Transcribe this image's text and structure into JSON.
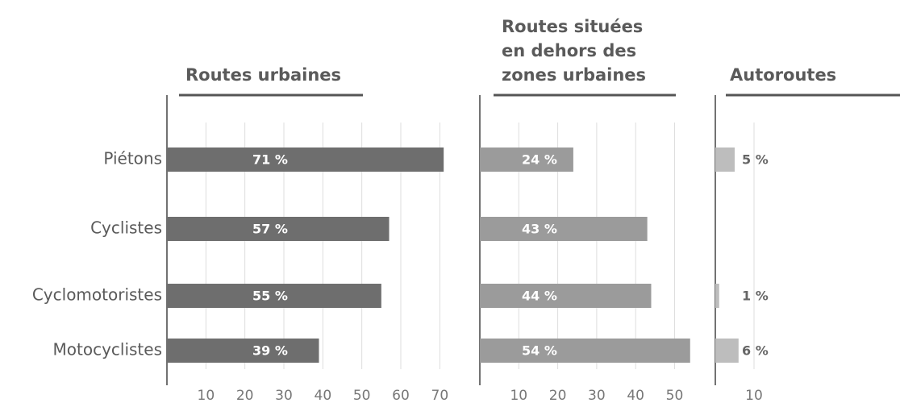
{
  "chart_data": [
    {
      "type": "bar",
      "orientation": "horizontal",
      "title": [
        "Routes urbaines"
      ],
      "categories": [
        "Piétons",
        "Cyclistes",
        "Cyclomotoristes",
        "Motocyclistes"
      ],
      "values": [
        71,
        57,
        55,
        39
      ],
      "value_labels": [
        "71 %",
        "57 %",
        "55 %",
        "39 %"
      ],
      "color": "#6e6e6e",
      "xlim": [
        0,
        75
      ],
      "xticks": [
        10,
        20,
        30,
        40,
        50,
        60,
        70
      ],
      "grid": true
    },
    {
      "type": "bar",
      "orientation": "horizontal",
      "title": [
        "Routes situées",
        "en dehors des",
        "zones urbaines"
      ],
      "values": [
        24,
        43,
        44,
        54
      ],
      "value_labels": [
        "24 %",
        "43 %",
        "44 %",
        "54 %"
      ],
      "color": "#9b9b9b",
      "xlim": [
        0,
        55
      ],
      "xticks": [
        10,
        20,
        30,
        40,
        50
      ],
      "grid": true
    },
    {
      "type": "bar",
      "orientation": "horizontal",
      "title": [
        "Autoroutes"
      ],
      "values": [
        5,
        null,
        1,
        6
      ],
      "value_labels": [
        "5 %",
        null,
        "1 %",
        "6 %"
      ],
      "color": "#bdbdbd",
      "xlim": [
        0,
        10
      ],
      "xticks": [
        10
      ],
      "grid": true
    }
  ]
}
